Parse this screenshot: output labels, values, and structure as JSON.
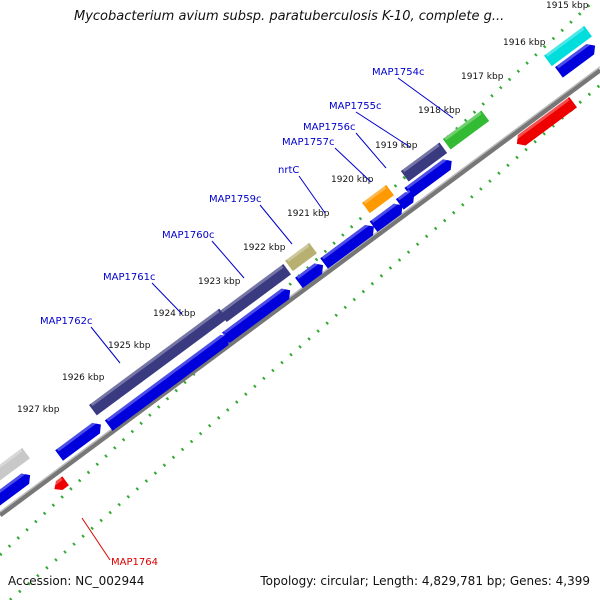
{
  "title": "Mycobacterium avium subsp. paratuberculosis K-10, complete g...",
  "footer": {
    "accession": "Accession: NC_002944",
    "summary": "Topology: circular; Length: 4,829,781 bp; Genes: 4,399"
  },
  "ticks": [
    "1915 kbp",
    "1916 kbp",
    "1917 kbp",
    "1918 kbp",
    "1919 kbp",
    "1920 kbp",
    "1921 kbp",
    "1922 kbp",
    "1923 kbp",
    "1924 kbp",
    "1925 kbp",
    "1926 kbp",
    "1927 kbp"
  ],
  "genes": [
    {
      "name": "MAP1754c",
      "color": "#0000cc"
    },
    {
      "name": "MAP1755c",
      "color": "#0000cc"
    },
    {
      "name": "MAP1756c",
      "color": "#0000cc"
    },
    {
      "name": "MAP1757c",
      "color": "#0000cc"
    },
    {
      "name": "nrtC",
      "color": "#0000cc"
    },
    {
      "name": "MAP1759c",
      "color": "#0000cc"
    },
    {
      "name": "MAP1760c",
      "color": "#0000cc"
    },
    {
      "name": "MAP1761c",
      "color": "#0000cc"
    },
    {
      "name": "MAP1762c",
      "color": "#0000cc"
    },
    {
      "name": "MAP1764",
      "color": "#dd0000"
    }
  ],
  "colors": {
    "cds": "#0000dd",
    "cds_dark": "#3a3a80",
    "rna_green": "#33bb33",
    "rna_cyan": "#00dddd",
    "rna_orange": "#ff9900",
    "rna_khaki": "#b8b070",
    "rna_grey": "#c8c8c8",
    "reverse_red": "#ee0000",
    "backbone": "#888888",
    "tick_dots": "#33aa33"
  }
}
